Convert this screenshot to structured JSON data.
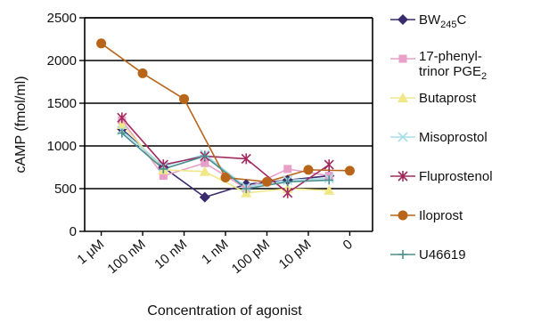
{
  "chart_data": {
    "type": "line",
    "title": "",
    "xlabel": "Concentration of agonist",
    "ylabel": "cAMP (fmol/ml)",
    "ylim": [
      0,
      2500
    ],
    "yticks": [
      "0",
      "500",
      "1000",
      "1500",
      "2000",
      "2500"
    ],
    "categories": [
      "1 μM",
      "100 nM",
      "10 nM",
      "1 nM",
      "100 pM",
      "10 pM",
      "0"
    ],
    "grid": "horizontal",
    "legend": "right",
    "x": [
      0,
      0.5,
      1,
      1.5,
      2,
      2.5,
      3,
      3.5,
      4,
      4.5,
      5,
      5.5,
      6
    ],
    "series": [
      {
        "name": "BW245C",
        "name_main": "BW",
        "name_sub": "245",
        "name_suffix": "C",
        "color": "#3a2a6e",
        "marker": "diamond",
        "values": [
          null,
          1200,
          null,
          750,
          null,
          400,
          null,
          550,
          null,
          600,
          null,
          650,
          null
        ]
      },
      {
        "name": "17-phenyl-trinor PGE2",
        "name_main": "17-phenyl-",
        "name_line2": "trinor PGE",
        "name_sub": "2",
        "color": "#e89fc8",
        "marker": "square",
        "values": [
          null,
          1300,
          null,
          650,
          null,
          800,
          null,
          500,
          null,
          730,
          null,
          650,
          null
        ]
      },
      {
        "name": "Butaprost",
        "name_main": "Butaprost",
        "color": "#f0e888",
        "marker": "triangle",
        "values": [
          null,
          1250,
          null,
          720,
          null,
          700,
          null,
          450,
          null,
          500,
          null,
          480,
          null
        ]
      },
      {
        "name": "Misoprostol",
        "name_main": "Misoprostol",
        "color": "#a8dde8",
        "marker": "x",
        "values": [
          null,
          1180,
          null,
          760,
          null,
          900,
          null,
          520,
          null,
          600,
          null,
          620,
          null
        ]
      },
      {
        "name": "Fluprostenol",
        "name_main": "Fluprostenol",
        "color": "#a02a5e",
        "marker": "star",
        "values": [
          null,
          1330,
          null,
          780,
          null,
          880,
          null,
          850,
          null,
          450,
          null,
          780,
          null
        ]
      },
      {
        "name": "Iloprost",
        "name_main": "Iloprost",
        "color": "#b8651a",
        "marker": "circle",
        "values": [
          2200,
          1850,
          1550,
          630,
          580,
          720,
          710
        ]
      },
      {
        "name": "U46619",
        "name_main": "U46619",
        "color": "#4a8f8f",
        "marker": "plus",
        "values": [
          null,
          1150,
          null,
          730,
          null,
          880,
          null,
          500,
          null,
          580,
          null,
          600,
          null
        ]
      }
    ]
  }
}
